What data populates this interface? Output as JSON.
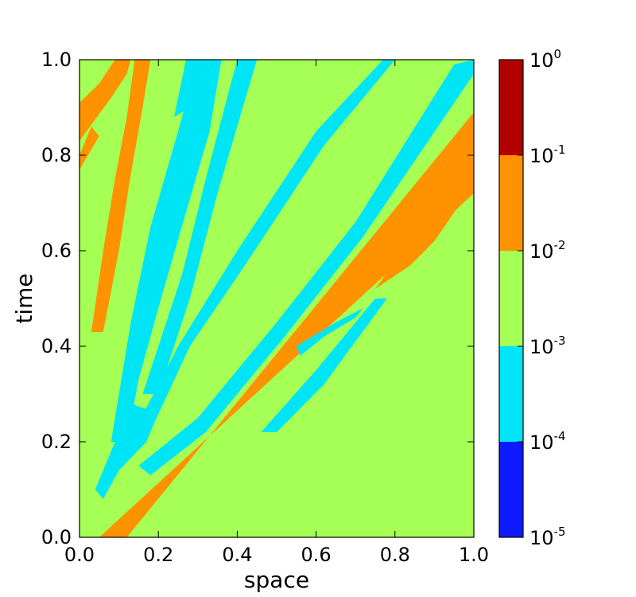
{
  "chart_data": {
    "type": "heatmap",
    "xlabel": "space",
    "ylabel": "time",
    "xlim": [
      0.0,
      1.0
    ],
    "ylim": [
      0.0,
      1.0
    ],
    "x_ticks": [
      "0.0",
      "0.2",
      "0.4",
      "0.6",
      "0.8",
      "1.0"
    ],
    "y_ticks": [
      "0.0",
      "0.2",
      "0.4",
      "0.6",
      "0.8",
      "1.0"
    ],
    "background_level": "1e-3 to 1e-2",
    "colorbar": {
      "scale": "log",
      "levels": [
        {
          "label": "10^-5 to 10^-4",
          "color": "#0d1aff"
        },
        {
          "label": "10^-4 to 10^-3",
          "color": "#00e5f5"
        },
        {
          "label": "10^-3 to 10^-2",
          "color": "#a6ff54"
        },
        {
          "label": "10^-2 to 10^-1",
          "color": "#ff9200"
        },
        {
          "label": "10^-1 to 10^0",
          "color": "#b20000"
        }
      ],
      "tick_labels": [
        {
          "base": "10",
          "exp": "-5"
        },
        {
          "base": "10",
          "exp": "-4"
        },
        {
          "base": "10",
          "exp": "-3"
        },
        {
          "base": "10",
          "exp": "-2"
        },
        {
          "base": "10",
          "exp": "-1"
        },
        {
          "base": "10",
          "exp": "0"
        }
      ]
    },
    "bands": [
      {
        "name": "main-orange-band",
        "color": "#ff9200",
        "points": [
          [
            0.05,
            0.0
          ],
          [
            0.12,
            0.0
          ],
          [
            1.0,
            0.89
          ],
          [
            1.0,
            0.72
          ]
        ]
      },
      {
        "name": "upper-left-orange-band",
        "color": "#ff9200",
        "points": [
          [
            0.03,
            0.43
          ],
          [
            0.06,
            0.6
          ],
          [
            0.09,
            0.75
          ],
          [
            0.12,
            0.88
          ],
          [
            0.14,
            1.0
          ],
          [
            0.18,
            1.0
          ],
          [
            0.16,
            0.9
          ],
          [
            0.13,
            0.76
          ],
          [
            0.1,
            0.6
          ],
          [
            0.06,
            0.43
          ]
        ]
      },
      {
        "name": "top-left-orange-patch",
        "color": "#ff9200",
        "points": [
          [
            0.0,
            0.83
          ],
          [
            0.08,
            0.92
          ],
          [
            0.12,
            0.97
          ],
          [
            0.13,
            1.0
          ],
          [
            0.09,
            1.0
          ],
          [
            0.05,
            0.95
          ],
          [
            0.0,
            0.91
          ]
        ]
      },
      {
        "name": "left-edge-orange-patch",
        "color": "#ff9200",
        "points": [
          [
            0.0,
            0.77
          ],
          [
            0.05,
            0.84
          ],
          [
            0.03,
            0.86
          ],
          [
            0.0,
            0.8
          ]
        ]
      },
      {
        "name": "right-orange-fringe",
        "color": "#ff9200",
        "points": [
          [
            0.75,
            0.52
          ],
          [
            0.82,
            0.6
          ],
          [
            0.9,
            0.65
          ],
          [
            1.0,
            0.8
          ],
          [
            1.0,
            0.74
          ],
          [
            0.9,
            0.62
          ],
          [
            0.84,
            0.57
          ]
        ]
      },
      {
        "name": "cyan-stripe-1",
        "color": "#00e5f5",
        "points": [
          [
            0.16,
            0.3
          ],
          [
            0.26,
            0.55
          ],
          [
            0.32,
            0.75
          ],
          [
            0.4,
            1.0
          ],
          [
            0.45,
            1.0
          ],
          [
            0.35,
            0.72
          ],
          [
            0.28,
            0.5
          ],
          [
            0.2,
            0.3
          ]
        ]
      },
      {
        "name": "cyan-stripe-2",
        "color": "#00e5f5",
        "points": [
          [
            0.15,
            0.24
          ],
          [
            0.25,
            0.4
          ],
          [
            0.4,
            0.6
          ],
          [
            0.6,
            0.85
          ],
          [
            0.77,
            1.0
          ],
          [
            0.8,
            1.0
          ],
          [
            0.62,
            0.82
          ],
          [
            0.42,
            0.57
          ],
          [
            0.28,
            0.4
          ],
          [
            0.19,
            0.24
          ]
        ]
      },
      {
        "name": "cyan-stripe-3",
        "color": "#00e5f5",
        "points": [
          [
            0.15,
            0.15
          ],
          [
            0.3,
            0.25
          ],
          [
            0.5,
            0.45
          ],
          [
            0.7,
            0.66
          ],
          [
            0.95,
            0.99
          ],
          [
            1.0,
            1.0
          ],
          [
            1.0,
            0.97
          ],
          [
            0.72,
            0.63
          ],
          [
            0.52,
            0.42
          ],
          [
            0.32,
            0.22
          ],
          [
            0.18,
            0.13
          ]
        ]
      },
      {
        "name": "cyan-stripe-4",
        "color": "#00e5f5",
        "points": [
          [
            0.3,
            1.0
          ],
          [
            0.25,
            0.85
          ],
          [
            0.18,
            0.65
          ],
          [
            0.13,
            0.45
          ],
          [
            0.1,
            0.3
          ],
          [
            0.08,
            0.2
          ],
          [
            0.12,
            0.2
          ],
          [
            0.15,
            0.33
          ],
          [
            0.2,
            0.48
          ],
          [
            0.27,
            0.68
          ],
          [
            0.33,
            0.85
          ],
          [
            0.36,
            1.0
          ]
        ]
      },
      {
        "name": "cyan-knot",
        "color": "#00e5f5",
        "points": [
          [
            0.04,
            0.1
          ],
          [
            0.1,
            0.22
          ],
          [
            0.13,
            0.28
          ],
          [
            0.2,
            0.26
          ],
          [
            0.17,
            0.2
          ],
          [
            0.1,
            0.14
          ],
          [
            0.06,
            0.08
          ]
        ]
      },
      {
        "name": "cyan-top-stub",
        "color": "#00e5f5",
        "points": [
          [
            0.24,
            0.88
          ],
          [
            0.27,
            1.0
          ],
          [
            0.31,
            1.0
          ],
          [
            0.28,
            0.9
          ]
        ]
      },
      {
        "name": "cyan-lower-fringe",
        "color": "#00e5f5",
        "points": [
          [
            0.46,
            0.22
          ],
          [
            0.6,
            0.35
          ],
          [
            0.75,
            0.5
          ],
          [
            0.78,
            0.5
          ],
          [
            0.62,
            0.32
          ],
          [
            0.5,
            0.22
          ]
        ]
      },
      {
        "name": "cyan-mid-fringe",
        "color": "#00e5f5",
        "points": [
          [
            0.55,
            0.4
          ],
          [
            0.65,
            0.45
          ],
          [
            0.72,
            0.48
          ],
          [
            0.7,
            0.46
          ],
          [
            0.62,
            0.42
          ],
          [
            0.56,
            0.38
          ]
        ]
      }
    ]
  }
}
